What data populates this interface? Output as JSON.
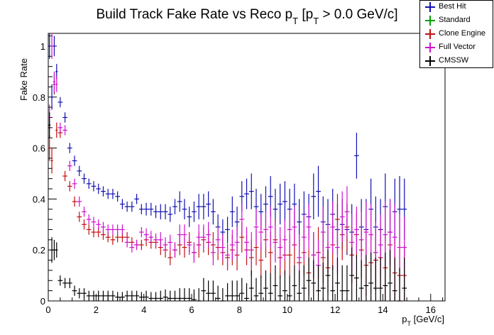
{
  "chart_data": {
    "type": "scatter",
    "title": "Build Track Fake Rate vs Reco p_T [p_T > 0.0 GeV/c]",
    "xlabel": "p_T [GeV/c]",
    "ylabel": "Fake Rate",
    "xlim": [
      0,
      16.6
    ],
    "ylim": [
      0,
      1.05
    ],
    "x_ticks": [
      "0",
      "2",
      "4",
      "6",
      "8",
      "10",
      "12",
      "14",
      "16"
    ],
    "y_ticks": [
      "0",
      "0.2",
      "0.4",
      "0.6",
      "0.8",
      "1"
    ],
    "legend_position": "top-right",
    "series": [
      {
        "name": "Best Hit",
        "color": "#1010b0",
        "x": [
          0.05,
          0.15,
          0.25,
          0.35,
          0.5,
          0.7,
          0.9,
          1.1,
          1.3,
          1.5,
          1.7,
          1.9,
          2.1,
          2.3,
          2.5,
          2.7,
          2.9,
          3.1,
          3.3,
          3.5,
          3.7,
          3.9,
          4.1,
          4.3,
          4.5,
          4.7,
          4.9,
          5.1,
          5.3,
          5.5,
          5.7,
          5.9,
          6.1,
          6.3,
          6.5,
          6.7,
          6.9,
          7.1,
          7.3,
          7.5,
          7.7,
          7.9,
          8.1,
          8.3,
          8.5,
          8.7,
          8.9,
          9.1,
          9.3,
          9.5,
          9.7,
          9.9,
          10.1,
          10.3,
          10.5,
          10.7,
          10.9,
          11.1,
          11.3,
          11.5,
          11.7,
          11.9,
          12.1,
          12.3,
          12.5,
          12.7,
          12.9,
          13.1,
          13.3,
          13.5,
          13.7,
          13.9,
          14.1,
          14.3,
          14.5,
          14.7,
          14.9
        ],
        "y": [
          1.0,
          0.8,
          1.0,
          0.9,
          0.78,
          0.72,
          0.6,
          0.55,
          0.51,
          0.48,
          0.46,
          0.45,
          0.44,
          0.43,
          0.42,
          0.42,
          0.41,
          0.38,
          0.37,
          0.37,
          0.4,
          0.36,
          0.36,
          0.36,
          0.35,
          0.35,
          0.35,
          0.34,
          0.37,
          0.39,
          0.36,
          0.33,
          0.35,
          0.37,
          0.37,
          0.38,
          0.35,
          0.29,
          0.27,
          0.28,
          0.35,
          0.31,
          0.41,
          0.42,
          0.43,
          0.37,
          0.35,
          0.38,
          0.41,
          0.36,
          0.38,
          0.39,
          0.36,
          0.38,
          0.31,
          0.34,
          0.33,
          0.41,
          0.43,
          0.31,
          0.3,
          0.34,
          0.28,
          0.3,
          0.28,
          0.27,
          0.57,
          0.29,
          0.28,
          0.36,
          0.29,
          0.28,
          0.37,
          0.27,
          0.35,
          0.36,
          0.36
        ],
        "err": [
          0.05,
          0.05,
          0.04,
          0.03,
          0.02,
          0.02,
          0.02,
          0.02,
          0.02,
          0.02,
          0.02,
          0.02,
          0.02,
          0.02,
          0.02,
          0.02,
          0.02,
          0.02,
          0.02,
          0.02,
          0.02,
          0.02,
          0.025,
          0.025,
          0.025,
          0.03,
          0.03,
          0.03,
          0.03,
          0.04,
          0.04,
          0.04,
          0.04,
          0.05,
          0.05,
          0.05,
          0.05,
          0.05,
          0.05,
          0.05,
          0.06,
          0.06,
          0.06,
          0.06,
          0.07,
          0.07,
          0.07,
          0.07,
          0.08,
          0.08,
          0.08,
          0.08,
          0.08,
          0.08,
          0.09,
          0.09,
          0.09,
          0.09,
          0.1,
          0.1,
          0.1,
          0.1,
          0.1,
          0.1,
          0.1,
          0.11,
          0.09,
          0.11,
          0.12,
          0.12,
          0.12,
          0.12,
          0.13,
          0.13,
          0.13,
          0.13,
          0.12
        ]
      },
      {
        "name": "Standard",
        "color": "#00a000",
        "x": [],
        "y": [],
        "err": []
      },
      {
        "name": "Clone Engine",
        "color": "#c01010",
        "x": [
          0.05,
          0.15,
          0.25,
          0.35,
          0.5,
          0.7,
          0.9,
          1.1,
          1.3,
          1.5,
          1.7,
          1.9,
          2.1,
          2.3,
          2.5,
          2.7,
          2.9,
          3.1,
          3.3,
          3.5,
          3.7,
          3.9,
          4.1,
          4.3,
          4.5,
          4.7,
          4.9,
          5.1,
          5.3,
          5.5,
          5.7,
          5.9,
          6.1,
          6.3,
          6.5,
          6.7,
          6.9,
          7.1,
          7.3,
          7.5,
          7.7,
          7.9,
          8.1,
          8.3,
          8.5,
          8.7,
          8.9,
          9.1,
          9.3,
          9.5,
          9.7,
          9.9,
          10.1,
          10.3,
          10.5,
          10.7,
          10.9,
          11.1,
          11.3,
          11.5,
          11.7,
          11.9,
          12.1,
          12.3,
          12.5,
          12.7,
          12.9,
          13.1,
          13.3,
          13.5,
          13.7,
          13.9,
          14.1,
          14.3,
          14.5,
          14.7,
          14.9
        ],
        "y": [
          0.6,
          0.55,
          0.85,
          0.67,
          0.66,
          0.49,
          0.45,
          0.39,
          0.33,
          0.3,
          0.28,
          0.27,
          0.27,
          0.26,
          0.25,
          0.24,
          0.25,
          0.25,
          0.25,
          0.23,
          0.22,
          0.22,
          0.24,
          0.23,
          0.23,
          0.21,
          0.2,
          0.17,
          0.2,
          0.22,
          0.21,
          0.23,
          0.19,
          0.22,
          0.24,
          0.23,
          0.22,
          0.21,
          0.19,
          0.17,
          0.2,
          0.18,
          0.25,
          0.2,
          0.17,
          0.21,
          0.16,
          0.24,
          0.19,
          0.24,
          0.17,
          0.18,
          0.18,
          0.22,
          0.15,
          0.19,
          0.11,
          0.18,
          0.19,
          0.17,
          0.13,
          0.22,
          0.32,
          0.26,
          0.29,
          0.18,
          0.26,
          0.2,
          0.14,
          0.15,
          0.16,
          0.17,
          0.13,
          0.22,
          0.11,
          0.1,
          0.1
        ],
        "err": [
          0.05,
          0.05,
          0.04,
          0.03,
          0.02,
          0.02,
          0.02,
          0.02,
          0.02,
          0.02,
          0.02,
          0.02,
          0.02,
          0.02,
          0.02,
          0.02,
          0.02,
          0.02,
          0.02,
          0.02,
          0.02,
          0.02,
          0.025,
          0.025,
          0.025,
          0.03,
          0.03,
          0.03,
          0.03,
          0.04,
          0.04,
          0.04,
          0.04,
          0.05,
          0.05,
          0.05,
          0.05,
          0.05,
          0.05,
          0.05,
          0.06,
          0.06,
          0.06,
          0.06,
          0.07,
          0.07,
          0.07,
          0.07,
          0.08,
          0.08,
          0.08,
          0.08,
          0.08,
          0.08,
          0.09,
          0.09,
          0.09,
          0.09,
          0.1,
          0.1,
          0.1,
          0.1,
          0.1,
          0.1,
          0.1,
          0.11,
          0.09,
          0.11,
          0.12,
          0.12,
          0.12,
          0.12,
          0.13,
          0.13,
          0.13,
          0.13,
          0.12
        ]
      },
      {
        "name": "Full Vector",
        "color": "#d010d0",
        "x": [
          0.05,
          0.15,
          0.25,
          0.35,
          0.5,
          0.7,
          0.9,
          1.1,
          1.3,
          1.5,
          1.7,
          1.9,
          2.1,
          2.3,
          2.5,
          2.7,
          2.9,
          3.1,
          3.3,
          3.5,
          3.7,
          3.9,
          4.1,
          4.3,
          4.5,
          4.7,
          4.9,
          5.1,
          5.3,
          5.5,
          5.7,
          5.9,
          6.1,
          6.3,
          6.5,
          6.7,
          6.9,
          7.1,
          7.3,
          7.5,
          7.7,
          7.9,
          8.1,
          8.3,
          8.5,
          8.7,
          8.9,
          9.1,
          9.3,
          9.5,
          9.7,
          9.9,
          10.1,
          10.3,
          10.5,
          10.7,
          10.9,
          11.1,
          11.3,
          11.5,
          11.7,
          11.9,
          12.1,
          12.3,
          12.5,
          12.7,
          12.9,
          13.1,
          13.3,
          13.5,
          13.7,
          13.9,
          14.1,
          14.3,
          14.5,
          14.7,
          14.9
        ],
        "y": [
          0.72,
          1.0,
          0.86,
          0.85,
          0.68,
          0.67,
          0.53,
          0.46,
          0.39,
          0.35,
          0.32,
          0.31,
          0.3,
          0.29,
          0.28,
          0.28,
          0.28,
          0.28,
          0.23,
          0.21,
          0.22,
          0.27,
          0.26,
          0.25,
          0.24,
          0.24,
          0.22,
          0.23,
          0.2,
          0.26,
          0.26,
          0.22,
          0.19,
          0.25,
          0.25,
          0.26,
          0.19,
          0.24,
          0.21,
          0.18,
          0.22,
          0.23,
          0.32,
          0.23,
          0.2,
          0.29,
          0.27,
          0.28,
          0.29,
          0.23,
          0.21,
          0.24,
          0.28,
          0.29,
          0.17,
          0.25,
          0.29,
          0.18,
          0.14,
          0.27,
          0.21,
          0.29,
          0.21,
          0.33,
          0.35,
          0.23,
          0.28,
          0.24,
          0.27,
          0.26,
          0.19,
          0.22,
          0.26,
          0.27,
          0.25,
          0.21,
          0.21
        ],
        "err": [
          0.05,
          0.05,
          0.04,
          0.03,
          0.02,
          0.02,
          0.02,
          0.02,
          0.02,
          0.02,
          0.02,
          0.02,
          0.02,
          0.02,
          0.02,
          0.02,
          0.02,
          0.02,
          0.02,
          0.02,
          0.02,
          0.02,
          0.025,
          0.025,
          0.025,
          0.03,
          0.03,
          0.03,
          0.03,
          0.04,
          0.04,
          0.04,
          0.04,
          0.05,
          0.05,
          0.05,
          0.05,
          0.05,
          0.05,
          0.05,
          0.06,
          0.06,
          0.06,
          0.06,
          0.07,
          0.07,
          0.07,
          0.07,
          0.08,
          0.08,
          0.08,
          0.08,
          0.08,
          0.08,
          0.09,
          0.09,
          0.09,
          0.09,
          0.1,
          0.1,
          0.1,
          0.1,
          0.1,
          0.1,
          0.1,
          0.11,
          0.09,
          0.11,
          0.12,
          0.12,
          0.12,
          0.12,
          0.13,
          0.13,
          0.13,
          0.13,
          0.12
        ]
      },
      {
        "name": "CMSSW",
        "color": "#000000",
        "x": [
          0.05,
          0.15,
          0.25,
          0.35,
          0.5,
          0.7,
          0.9,
          1.1,
          1.3,
          1.5,
          1.7,
          1.9,
          2.1,
          2.3,
          2.5,
          2.7,
          2.9,
          3.1,
          3.3,
          3.5,
          3.7,
          3.9,
          4.1,
          4.3,
          4.5,
          4.7,
          4.9,
          5.1,
          5.3,
          5.5,
          5.7,
          5.9,
          6.1,
          6.3,
          6.5,
          6.7,
          6.9,
          7.1,
          7.3,
          7.5,
          7.7,
          7.9,
          8.1,
          8.3,
          8.5,
          8.7,
          8.9,
          9.1,
          9.3,
          9.5,
          9.7,
          9.9,
          10.1,
          10.3,
          10.5,
          10.7,
          10.9,
          11.1,
          11.3,
          11.5,
          11.7,
          11.9,
          12.1,
          12.3,
          12.5,
          12.7,
          12.9,
          13.1,
          13.3,
          13.5,
          13.7,
          13.9,
          14.1,
          14.3,
          14.5,
          14.7,
          14.9
        ],
        "y": [
          0.69,
          0.2,
          0.2,
          0.2,
          0.08,
          0.07,
          0.07,
          0.04,
          0.03,
          0.03,
          0.02,
          0.02,
          0.02,
          0.02,
          0.02,
          0.02,
          0.015,
          0.015,
          0.02,
          0.02,
          0.02,
          0.015,
          0.015,
          0.01,
          0.01,
          0.01,
          0.015,
          0.01,
          0.01,
          0.01,
          0.01,
          0.01,
          0.005,
          0.0,
          0.04,
          0.03,
          0.03,
          0.01,
          0.0,
          0.02,
          0.02,
          0.02,
          0.03,
          0.01,
          0.05,
          0.02,
          0.03,
          0.05,
          0.03,
          0.06,
          0.02,
          0.04,
          0.02,
          0.06,
          0.03,
          0.05,
          0.08,
          0.07,
          0.04,
          0.05,
          0.1,
          0.04,
          0.07,
          0.04,
          0.04,
          0.1,
          0.09,
          0.05,
          0.06,
          0.07,
          0.05,
          0.05,
          0.06,
          0.07,
          0.04,
          0.0,
          0.05
        ],
        "err": [
          0.05,
          0.05,
          0.04,
          0.03,
          0.02,
          0.02,
          0.02,
          0.02,
          0.02,
          0.02,
          0.02,
          0.02,
          0.02,
          0.02,
          0.02,
          0.02,
          0.02,
          0.02,
          0.02,
          0.02,
          0.02,
          0.02,
          0.025,
          0.025,
          0.025,
          0.03,
          0.03,
          0.03,
          0.03,
          0.04,
          0.04,
          0.04,
          0.04,
          0.05,
          0.05,
          0.05,
          0.05,
          0.05,
          0.05,
          0.05,
          0.06,
          0.06,
          0.06,
          0.06,
          0.07,
          0.07,
          0.07,
          0.07,
          0.08,
          0.08,
          0.08,
          0.08,
          0.08,
          0.08,
          0.09,
          0.09,
          0.09,
          0.09,
          0.1,
          0.1,
          0.1,
          0.1,
          0.1,
          0.1,
          0.1,
          0.11,
          0.09,
          0.11,
          0.12,
          0.12,
          0.12,
          0.12,
          0.13,
          0.13,
          0.13,
          0.13,
          0.12
        ]
      }
    ]
  }
}
